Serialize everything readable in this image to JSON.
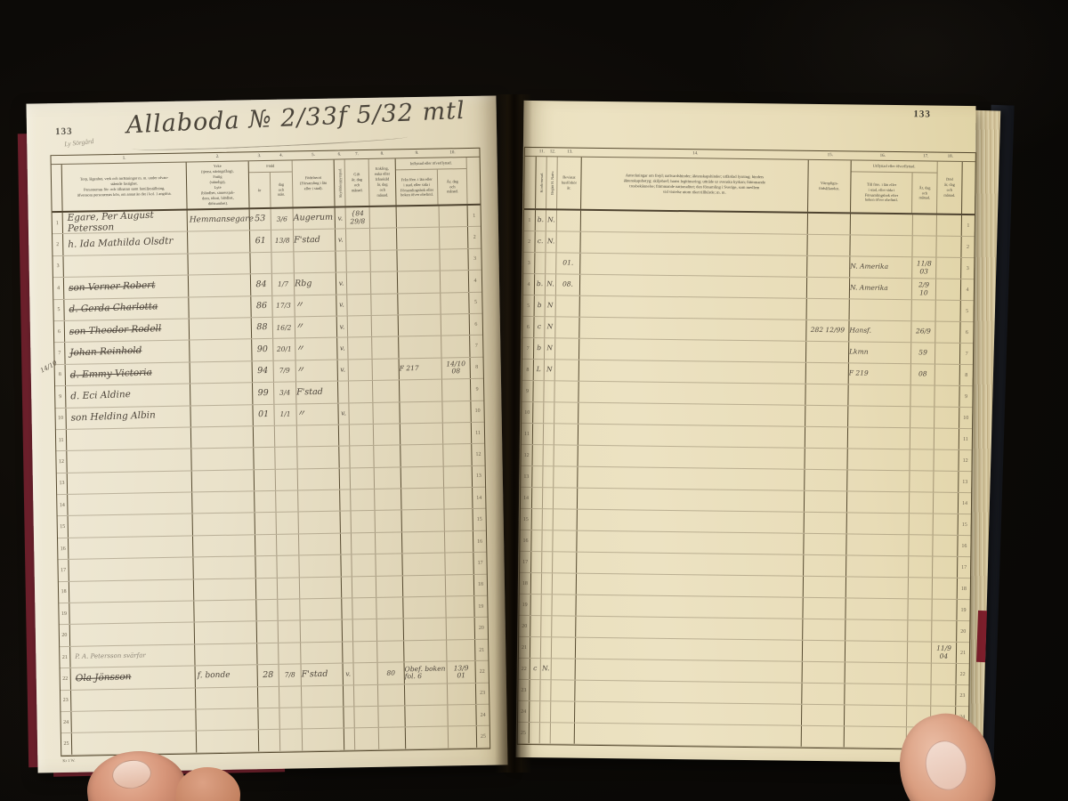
{
  "photo": {
    "left_page_number": "133",
    "right_page_number": "133",
    "pencil_note": "Ly Sörgård",
    "title": "Allaboda № 2/33f  5/32 mtl",
    "form_footer": "Kr 1 W."
  },
  "left_table": {
    "col_numbers": [
      "1.",
      "2.",
      "3.",
      "4.",
      "5.",
      "6.",
      "7.",
      "8.",
      "9.",
      "10."
    ],
    "margin_note": "14/10",
    "headers": {
      "col1": "Torp, lägenhet, verk och inrättningar m. m. under ofvan-\nstående fastighet.\nPersonernas för- och tillnamn samt familjeställning,\näfvensom personernas kön, om annat än det i kol. 1 angifna.",
      "col2": "Yrke\n(tjenst, näringsfång),\nFattig\n(ständigt),\nLyte\n(blindhet, sinnessjuk-\ndom, idioti, blödhet,\ndöfstumhet).",
      "fodd": "Född",
      "fodd_ar": "år",
      "fodd_dag": "dag\noch\nmån.",
      "ort": "Födelseort\n(Församling i län\neller i stad).",
      "vacc": "Skyddskoppympad.",
      "gift": "Gift\når, dag\noch\nmånad.",
      "enkl": "Enkling,\nenka eller\nfrånskild\når, dag\noch\nmånad.",
      "inflytt_group": "Inflyttad eller öfverflyttad.",
      "fran": "Från före. i län eller\ni stad, eller sida i\nFörsamlingsbok eller\nboken öfver obefintl.",
      "arin": "År, dag\noch\nmånad."
    },
    "rows": [
      {
        "name": "Egare, Per August Petersson",
        "yrke": "Hemmansegare",
        "ar": "53",
        "dag": "3/6",
        "ort": "Augerum",
        "vacc": "v.",
        "gift": "{84 29/8"
      },
      {
        "name": "h. Ida Mathilda Olsdtr",
        "ar": "61",
        "dag": "13/8",
        "ort": "F'stad",
        "vacc": "v."
      },
      {},
      {
        "name": "son Verner Robert",
        "struck": true,
        "ar": "84",
        "dag": "1/7",
        "ort": "Rbg",
        "vacc": "v."
      },
      {
        "name": "d. Gerda Charlotta",
        "struck": true,
        "ar": "86",
        "dag": "17/3",
        "ort": "〃",
        "vacc": "v."
      },
      {
        "name": "son Theodor Rodell",
        "struck": true,
        "ar": "88",
        "dag": "16/2",
        "ort": "〃",
        "vacc": "v."
      },
      {
        "name": "Johan Reinhold",
        "struck": true,
        "ar": "90",
        "dag": "20/1",
        "ort": "〃",
        "vacc": "v."
      },
      {
        "name": "d. Emmy Victoria",
        "struck": true,
        "ar": "94",
        "dag": "7/9",
        "ort": "〃",
        "vacc": "v.",
        "fran": "F 217",
        "arin": "14/10\n08"
      },
      {
        "name": "d. Eci Aldine",
        "ar": "99",
        "dag": "3/4",
        "ort": "F'stad"
      },
      {
        "name": "son Helding Albin",
        "ar": "01",
        "dag": "1/1",
        "ort": "〃",
        "vacc": "v."
      },
      {},
      {},
      {},
      {},
      {},
      {},
      {},
      {},
      {},
      {},
      {
        "name": "P. A. Petersson svärfar",
        "pencil": true
      },
      {
        "name": "Ola Jönsson",
        "struck": true,
        "yrke": "f. bonde",
        "ar": "28",
        "dag": "7/8",
        "ort": "F'stad",
        "vacc": "v.",
        "enkl": "80",
        "fran": "Obef. boken\nfol. 6",
        "arin": "13/9\n01"
      },
      {},
      {},
      {}
    ]
  },
  "right_table": {
    "col_numbers": [
      "11.",
      "12.",
      "13.",
      "14.",
      "15.",
      "16.",
      "17.",
      "18."
    ],
    "headers": {
      "c11": "Konfirmerad.",
      "c12": "Begått H. Nattv.",
      "c13": "Bevistat\nhusförhör\når.",
      "c14": "Anteckningar om frejd; nattvardshinder; äktenskapshinder; utfärdad lysning; hinders\näktenskapsbetyg; skiljebref; barns legitimering; utträde ur svenska kyrkan; främmande\ntrosbekännelse; främmande nationalitet; den församling i Sverige, som medlem\nvid vistelse utom riket tillhörde; m. m.",
      "c15": "Värnpligts-\nförhållanden.",
      "utflytt_group": "Utflyttad eller öfverflyttad.",
      "c16": "Till före. i län eller\ni stad, eller sida i\nFörsamlingsbok efter\nboken öfver obefintl.",
      "c17": "År, dag\noch\nmånad.",
      "c18": "Död\når, dag\noch\nmånad."
    },
    "rows": [
      {
        "c11": "b.",
        "c12": "N."
      },
      {
        "c11": "c.",
        "c12": "N."
      },
      {
        "c13": "01.",
        "c16": "N. Amerika",
        "c17": "11/8\n03"
      },
      {
        "c11": "b.",
        "c12": "N.",
        "c13": "08.",
        "c16": "N. Amerika",
        "c17": "2/9\n10"
      },
      {
        "c11": "b",
        "c12": "N"
      },
      {
        "c11": "c",
        "c12": "N",
        "c15": "282 12/99",
        "c16": "Hansf.",
        "c17": "26/9"
      },
      {
        "c11": "b",
        "c12": "N",
        "c16": "Lkmn",
        "c17": "59"
      },
      {
        "c11": "L",
        "c12": "N",
        "c16": "F 219",
        "c17": "08"
      },
      {},
      {},
      {},
      {},
      {},
      {},
      {},
      {},
      {},
      {},
      {},
      {},
      {
        "c18": "11/9\n04"
      },
      {
        "c11": "c",
        "c12": "N."
      },
      {},
      {},
      {}
    ]
  }
}
